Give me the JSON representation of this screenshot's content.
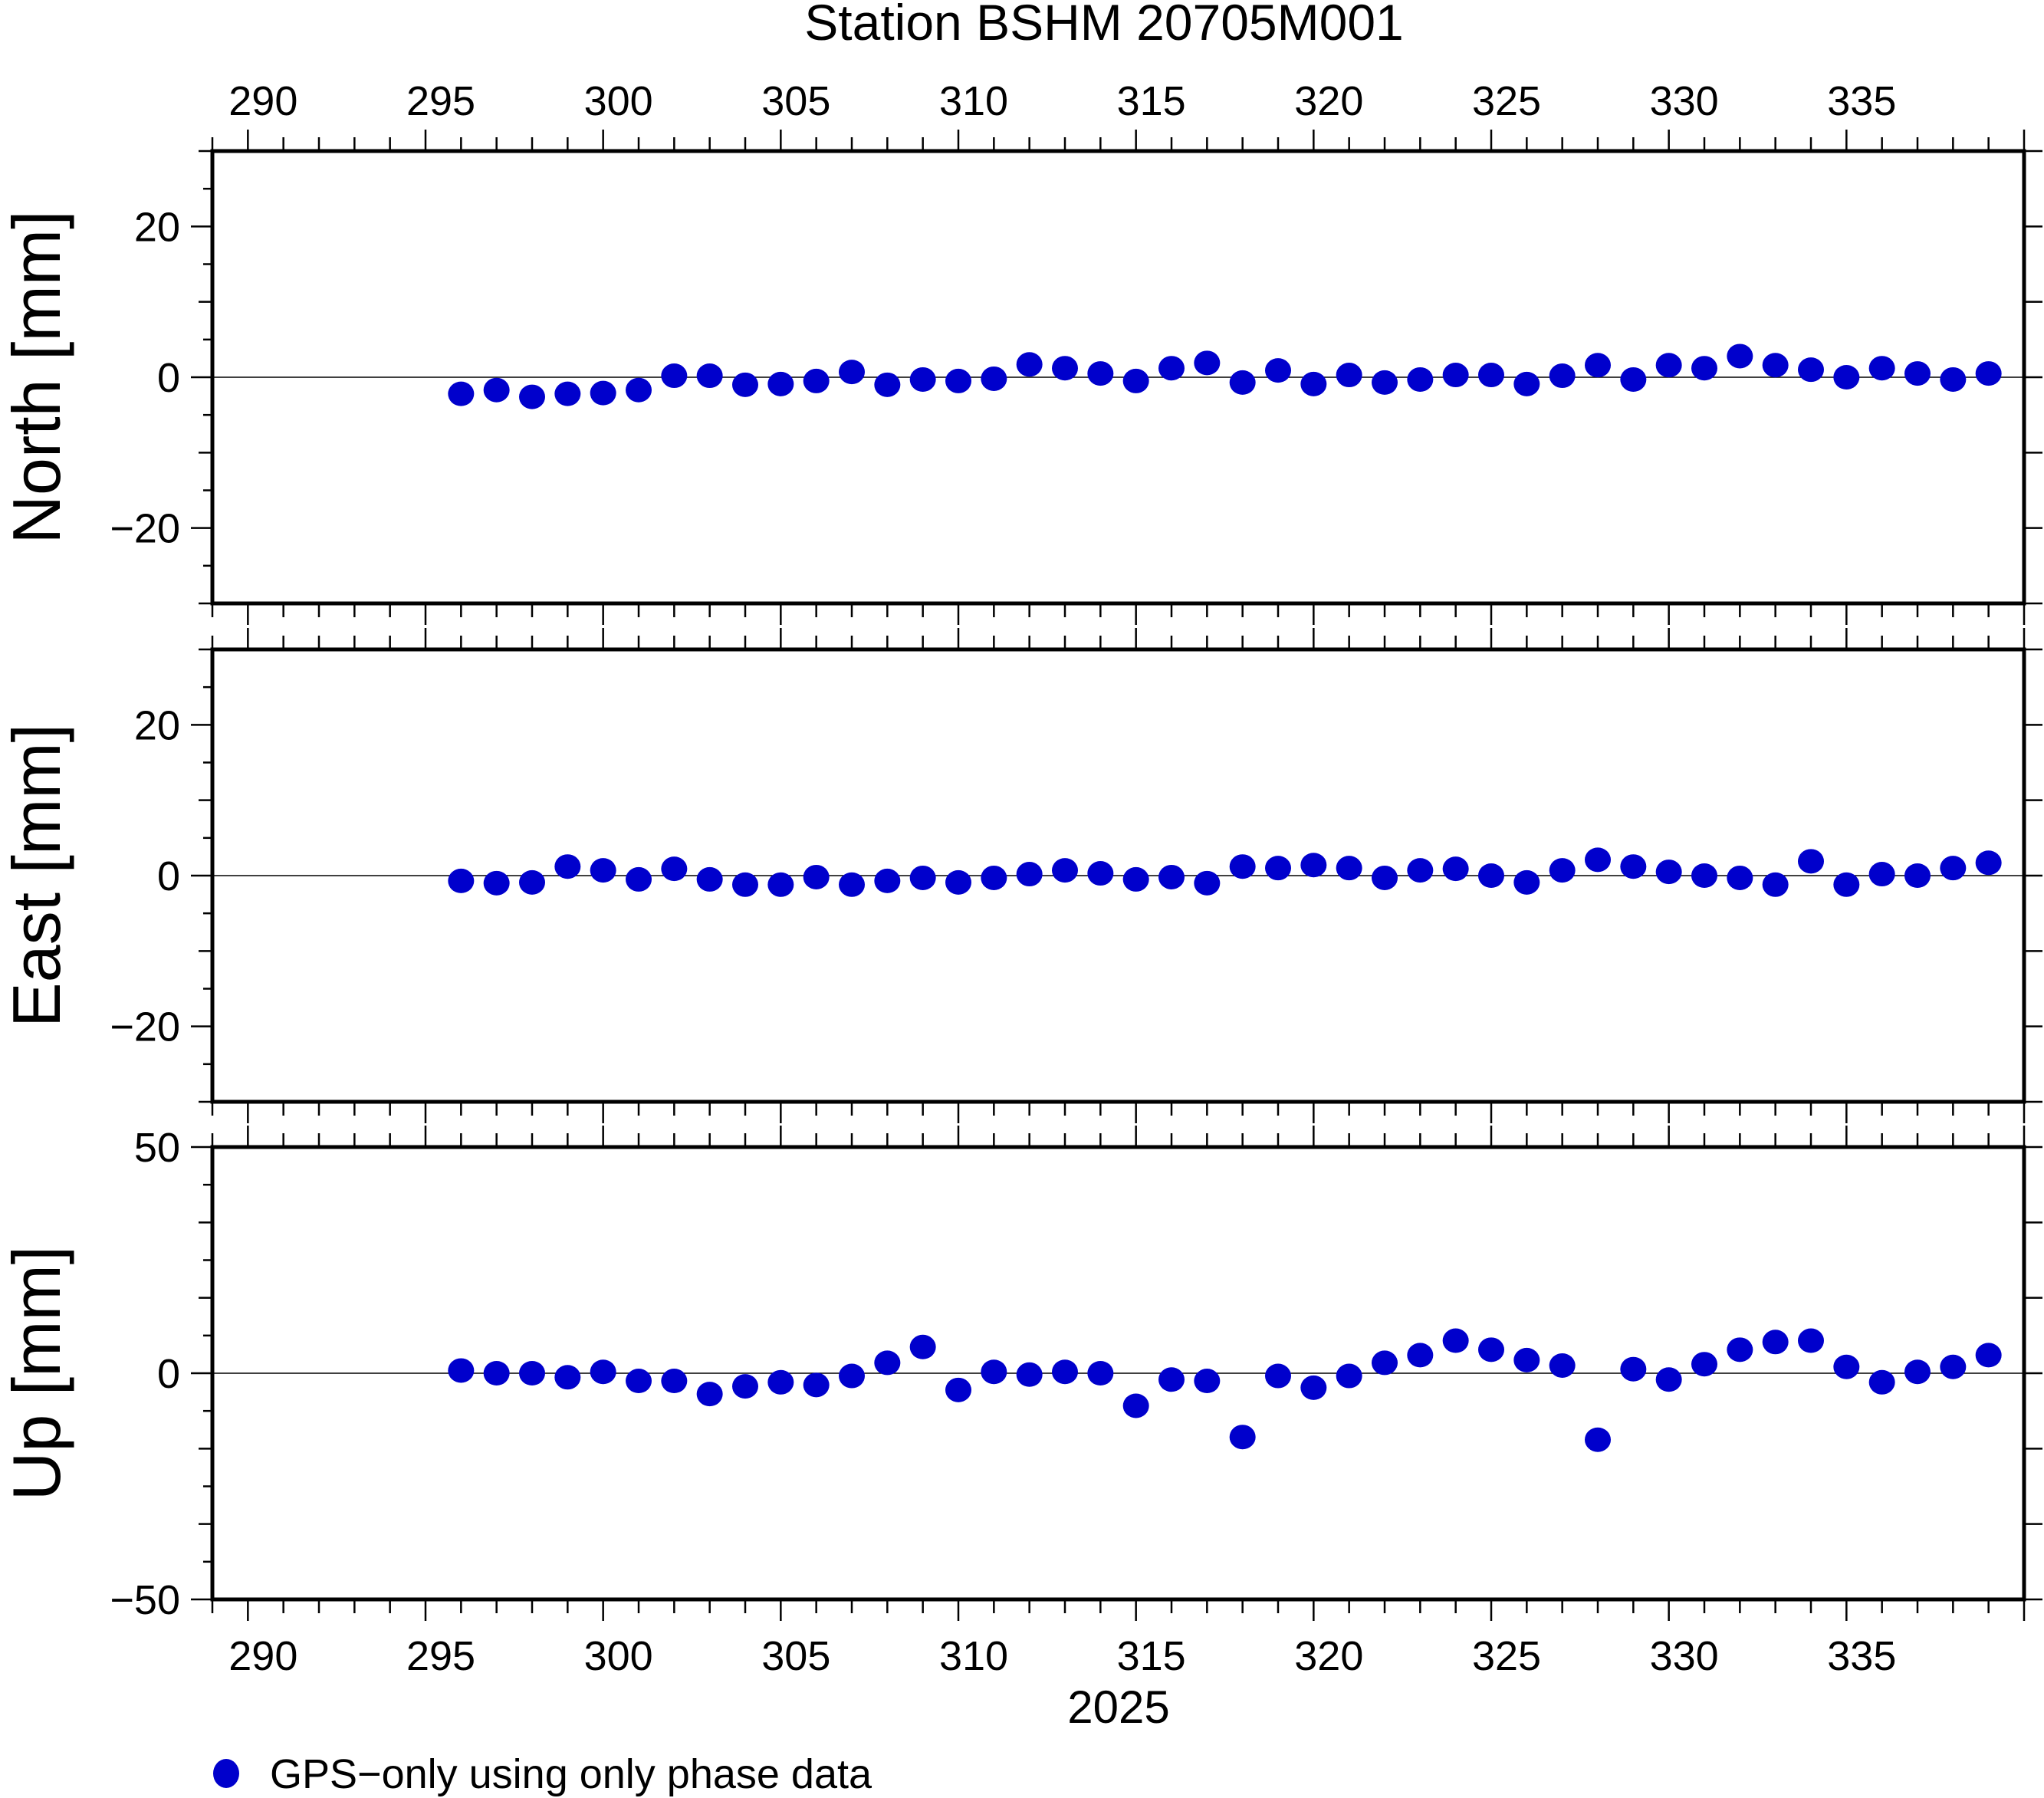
{
  "chart_data": {
    "type": "scatter",
    "title": "Station BSHM 20705M001",
    "xlabel": "2025",
    "xlim": [
      289,
      340
    ],
    "x_ticks": [
      290,
      295,
      300,
      305,
      310,
      315,
      320,
      325,
      330,
      335
    ],
    "x_tick_labels": [
      "290",
      "295",
      "300",
      "305",
      "310",
      "315",
      "320",
      "325",
      "330",
      "335"
    ],
    "marker_color": "#0000cc",
    "legend": {
      "label": "GPS−only using only phase data",
      "placement": "bottom-left"
    },
    "x": [
      296,
      297,
      298,
      299,
      300,
      301,
      302,
      303,
      304,
      305,
      306,
      307,
      308,
      309,
      310,
      311,
      312,
      313,
      314,
      315,
      316,
      317,
      318,
      319,
      320,
      321,
      322,
      323,
      324,
      325,
      326,
      327,
      328,
      329,
      330,
      331,
      332,
      333,
      334,
      335,
      336,
      337,
      338,
      339
    ],
    "panels": [
      {
        "name": "north",
        "ylabel": "North [mm]",
        "ylim": [
          -30,
          30
        ],
        "y_ticks": [
          -20,
          0,
          20
        ],
        "y_tick_labels": [
          "−20",
          "0",
          "20"
        ],
        "values": [
          -2.2,
          -1.7,
          -2.6,
          -2.2,
          -2.1,
          -1.7,
          0.2,
          0.2,
          -1.0,
          -0.9,
          -0.5,
          0.7,
          -1.0,
          -0.3,
          -0.5,
          -0.2,
          1.7,
          1.2,
          0.5,
          -0.5,
          1.2,
          1.9,
          -0.7,
          0.9,
          -0.9,
          0.3,
          -0.7,
          -0.3,
          0.3,
          0.3,
          -0.9,
          0.2,
          1.6,
          -0.3,
          1.6,
          1.2,
          2.8,
          1.6,
          1.0,
          0.0,
          1.2,
          0.5,
          -0.3,
          0.5
        ]
      },
      {
        "name": "east",
        "ylabel": "East [mm]",
        "ylim": [
          -30,
          30
        ],
        "y_ticks": [
          -20,
          0,
          20
        ],
        "y_tick_labels": [
          "−20",
          "0",
          "20"
        ],
        "values": [
          -0.7,
          -1.0,
          -0.9,
          1.2,
          0.7,
          -0.5,
          0.9,
          -0.5,
          -1.2,
          -1.2,
          -0.2,
          -1.2,
          -0.7,
          -0.3,
          -0.9,
          -0.3,
          0.2,
          0.7,
          0.3,
          -0.5,
          -0.2,
          -1.0,
          1.2,
          1.0,
          1.4,
          1.0,
          -0.3,
          0.7,
          0.9,
          0.0,
          -0.9,
          0.7,
          2.1,
          1.2,
          0.5,
          0.0,
          -0.3,
          -1.2,
          1.9,
          -1.2,
          0.2,
          0.0,
          1.0,
          1.7
        ]
      },
      {
        "name": "up",
        "ylabel": "Up [mm]",
        "ylim": [
          -50,
          50
        ],
        "y_ticks": [
          -50,
          0,
          50
        ],
        "y_tick_labels": [
          "−50",
          "0",
          "50"
        ],
        "values": [
          0.6,
          0.0,
          0.0,
          -0.9,
          0.3,
          -1.7,
          -1.7,
          -4.6,
          -2.9,
          -2.0,
          -2.6,
          -0.6,
          2.3,
          5.8,
          -3.7,
          0.3,
          -0.3,
          0.3,
          0.0,
          -7.2,
          -1.4,
          -1.7,
          -14.1,
          -0.6,
          -3.2,
          -0.6,
          2.3,
          4.0,
          7.2,
          5.2,
          2.9,
          1.7,
          -14.7,
          0.9,
          -1.4,
          2.0,
          5.2,
          6.9,
          7.2,
          1.4,
          -2.0,
          0.3,
          1.4,
          4.0
        ]
      }
    ]
  }
}
